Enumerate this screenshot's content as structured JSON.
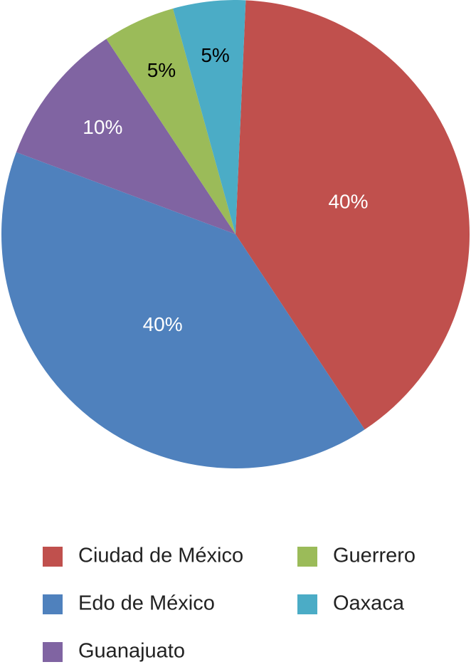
{
  "chart_data": {
    "type": "pie",
    "categories": [
      "Ciudad de México",
      "Edo de México",
      "Guanajuato",
      "Guerrero",
      "Oaxaca"
    ],
    "values": [
      40,
      40,
      10,
      5,
      5
    ],
    "value_labels": [
      "40%",
      "40%",
      "10%",
      "5%",
      "5%"
    ],
    "colors": [
      "#c0504d",
      "#4f81bd",
      "#8064a2",
      "#9bbb59",
      "#4bacc6"
    ]
  }
}
